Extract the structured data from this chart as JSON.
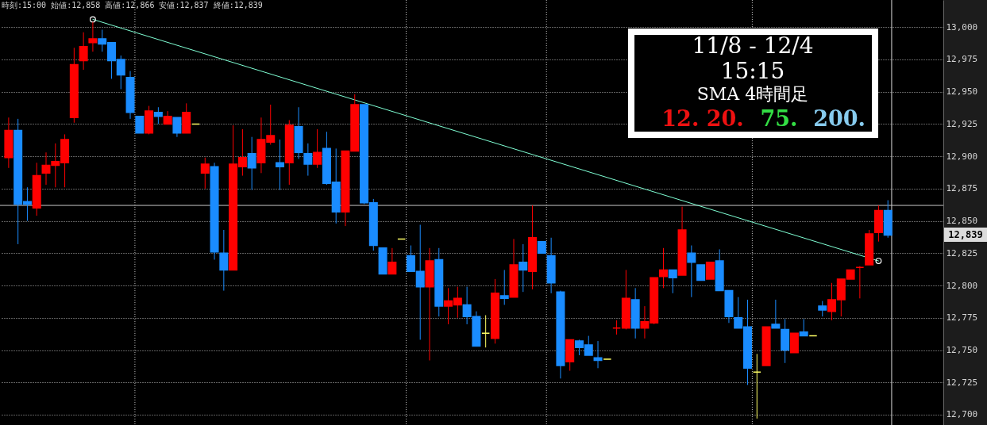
{
  "chart_data": {
    "type": "candlestick",
    "categories": [
      null,
      null,
      null,
      null,
      null,
      null,
      null,
      null,
      null,
      null,
      null,
      null,
      null,
      null,
      null,
      null,
      null,
      null,
      null,
      null,
      null,
      null,
      null,
      null,
      null,
      null,
      null,
      null,
      null,
      null,
      null,
      null,
      null,
      null,
      null,
      null,
      null,
      null,
      null,
      null,
      null,
      null,
      null,
      null,
      null,
      null,
      null,
      null,
      null,
      null,
      null,
      null,
      null,
      null,
      null,
      null,
      null,
      null,
      null,
      null,
      null,
      null,
      null,
      null,
      null,
      null,
      null,
      null,
      null,
      null,
      null,
      null,
      null,
      null,
      null,
      null,
      null,
      null,
      null,
      null,
      null,
      null,
      null,
      null,
      null,
      null,
      null,
      null,
      null,
      null,
      null,
      null,
      null,
      null,
      null,
      null,
      null,
      null,
      null,
      null
    ],
    "ohlc": [
      [
        12899,
        12930,
        12891,
        12920
      ],
      [
        12920,
        12929,
        12832,
        12863
      ],
      [
        12865,
        12876,
        12850,
        12863
      ],
      [
        12860,
        12895,
        12854,
        12885
      ],
      [
        12887,
        12903,
        12878,
        12893
      ],
      [
        12893,
        12910,
        12876,
        12896
      ],
      [
        12895,
        12917,
        12876,
        12913
      ],
      [
        12930,
        12984,
        12926,
        12971
      ],
      [
        12974,
        12996,
        12967,
        12985
      ],
      [
        12988,
        13004,
        12981,
        12991
      ],
      [
        12991,
        12998,
        12981,
        12987
      ],
      [
        12988,
        12988,
        12960,
        12974
      ],
      [
        12975,
        12978,
        12952,
        12963
      ],
      [
        12961,
        12966,
        12929,
        12934
      ],
      [
        12931,
        12931,
        12918,
        12918
      ],
      [
        12918,
        12939,
        12917,
        12935
      ],
      [
        12934,
        12938,
        12925,
        12931
      ],
      [
        12925,
        12935,
        12925,
        12931
      ],
      [
        12930,
        12930,
        12915,
        12918
      ],
      [
        12918,
        12941,
        12918,
        12934
      ],
      [
        12925,
        12925,
        12925,
        12925
      ],
      [
        12887,
        12899,
        12875,
        12894
      ],
      [
        12892,
        12895,
        12820,
        12826
      ],
      [
        12825,
        12843,
        12796,
        12812
      ],
      [
        12812,
        12924,
        12812,
        12894
      ],
      [
        12892,
        12921,
        12885,
        12899
      ],
      [
        12902,
        12915,
        12874,
        12891
      ],
      [
        12895,
        12930,
        12887,
        12913
      ],
      [
        12911,
        12940,
        12909,
        12916
      ],
      [
        12895,
        12913,
        12874,
        12892
      ],
      [
        12895,
        12928,
        12878,
        12924
      ],
      [
        12923,
        12938,
        12898,
        12903
      ],
      [
        12902,
        12910,
        12885,
        12894
      ],
      [
        12894,
        12921,
        12891,
        12903
      ],
      [
        12906,
        12919,
        12878,
        12879
      ],
      [
        12880,
        12906,
        12848,
        12857
      ],
      [
        12857,
        12904,
        12846,
        12904
      ],
      [
        12904,
        12948,
        12904,
        12940
      ],
      [
        12940,
        12940,
        12863,
        12864
      ],
      [
        12864,
        12867,
        12827,
        12831
      ],
      [
        12829,
        12829,
        12809,
        12809
      ],
      [
        12809,
        12829,
        12809,
        12818
      ],
      [
        12836,
        12836,
        12836,
        12836
      ],
      [
        12823,
        12831,
        12811,
        12811
      ],
      [
        12811,
        12847,
        12758,
        12799
      ],
      [
        12799,
        12829,
        12742,
        12819
      ],
      [
        12820,
        12829,
        12776,
        12784
      ],
      [
        12784,
        12798,
        12770,
        12788
      ],
      [
        12785,
        12799,
        12775,
        12790
      ],
      [
        12785,
        12799,
        12770,
        12776
      ],
      [
        12776,
        12780,
        12753,
        12753
      ],
      [
        12763,
        12777,
        12752,
        12763
      ],
      [
        12759,
        12805,
        12755,
        12794
      ],
      [
        12792,
        12812,
        12785,
        12790
      ],
      [
        12791,
        12836,
        12791,
        12816
      ],
      [
        12818,
        12832,
        12795,
        12812
      ],
      [
        12811,
        12862,
        12797,
        12837
      ],
      [
        12834,
        12834,
        12825,
        12825
      ],
      [
        12823,
        12837,
        12794,
        12802
      ],
      [
        12795,
        12796,
        12728,
        12738
      ],
      [
        12741,
        12758,
        12734,
        12758
      ],
      [
        12757,
        12758,
        12746,
        12752
      ],
      [
        12754,
        12761,
        12746,
        12746
      ],
      [
        12744,
        12757,
        12736,
        12742
      ],
      [
        12743,
        12743,
        12743,
        12743
      ],
      [
        12767,
        12773,
        12762,
        12767
      ],
      [
        12767,
        12812,
        12766,
        12790
      ],
      [
        12789,
        12798,
        12759,
        12767
      ],
      [
        12767,
        12784,
        12759,
        12772
      ],
      [
        12771,
        12806,
        12770,
        12806
      ],
      [
        12807,
        12829,
        12798,
        12812
      ],
      [
        12812,
        12812,
        12794,
        12806
      ],
      [
        12808,
        12861,
        12808,
        12843
      ],
      [
        12825,
        12831,
        12791,
        12818
      ],
      [
        12816,
        12816,
        12804,
        12804
      ],
      [
        12805,
        12818,
        12805,
        12818
      ],
      [
        12819,
        12828,
        12796,
        12796
      ],
      [
        12796,
        12796,
        12771,
        12776
      ],
      [
        12775,
        12791,
        12767,
        12767
      ],
      [
        12768,
        12789,
        12723,
        12736
      ],
      [
        12733,
        12747,
        12697,
        12733
      ],
      [
        12738,
        12768,
        12738,
        12768
      ],
      [
        12770,
        12789,
        12767,
        12767
      ],
      [
        12766,
        12774,
        12740,
        12750
      ],
      [
        12748,
        12763,
        12748,
        12763
      ],
      [
        12764,
        12774,
        12761,
        12761
      ],
      [
        12761,
        12761,
        12761,
        12761
      ],
      [
        12784,
        12788,
        12776,
        12781
      ],
      [
        12780,
        12802,
        12773,
        12789
      ],
      [
        12789,
        12805,
        12776,
        12805
      ],
      [
        12805,
        12812,
        12805,
        12812
      ],
      [
        12814,
        12815,
        12790,
        12814
      ],
      [
        12816,
        12843,
        12816,
        12840
      ],
      [
        12841,
        12862,
        12834,
        12858
      ],
      [
        12858,
        12866,
        12837,
        12839
      ],
      null,
      null,
      null,
      null,
      null
    ],
    "colors": [
      "#ff0000",
      "#1a8cff",
      "#1a8cff",
      "#ff0000",
      "#ff0000",
      "#ff0000",
      "#ff0000",
      "#ff0000",
      "#ff0000",
      "#ff0000",
      "#1a8cff",
      "#1a8cff",
      "#1a8cff",
      "#1a8cff",
      "#1a8cff",
      "#ff0000",
      "#1a8cff",
      "#ff0000",
      "#1a8cff",
      "#ff0000",
      "#ffff66",
      "#ff0000",
      "#1a8cff",
      "#1a8cff",
      "#ff0000",
      "#ff0000",
      "#1a8cff",
      "#ff0000",
      "#ff0000",
      "#1a8cff",
      "#ff0000",
      "#1a8cff",
      "#1a8cff",
      "#ff0000",
      "#1a8cff",
      "#1a8cff",
      "#ff0000",
      "#ff0000",
      "#1a8cff",
      "#1a8cff",
      "#1a8cff",
      "#ff0000",
      "#ffff66",
      "#1a8cff",
      "#1a8cff",
      "#ff0000",
      "#1a8cff",
      "#ff0000",
      "#ff0000",
      "#1a8cff",
      "#1a8cff",
      "#ffff66",
      "#ff0000",
      "#1a8cff",
      "#ff0000",
      "#1a8cff",
      "#ff0000",
      "#1a8cff",
      "#1a8cff",
      "#1a8cff",
      "#ff0000",
      "#1a8cff",
      "#1a8cff",
      "#1a8cff",
      "#ffff66",
      "#ff0000",
      "#ff0000",
      "#1a8cff",
      "#ff0000",
      "#ff0000",
      "#ff0000",
      "#1a8cff",
      "#ff0000",
      "#1a8cff",
      "#1a8cff",
      "#ff0000",
      "#1a8cff",
      "#1a8cff",
      "#1a8cff",
      "#1a8cff",
      "#ffff66",
      "#ff0000",
      "#1a8cff",
      "#1a8cff",
      "#ff0000",
      "#1a8cff",
      "#ffff66",
      "#1a8cff",
      "#ff0000",
      "#ff0000",
      "#ff0000",
      "#ff0000",
      "#ff0000",
      "#ff0000",
      "#1a8cff",
      null,
      null,
      null,
      null,
      null
    ],
    "series": [
      {
        "type": "line",
        "color": "#7fffd4",
        "marker": "circle",
        "values": [
          null,
          null,
          null,
          null,
          null,
          null,
          null,
          null,
          null,
          13006,
          null,
          null,
          null,
          null,
          null,
          null,
          null,
          null,
          null,
          null,
          null,
          null,
          null,
          null,
          null,
          null,
          null,
          null,
          null,
          null,
          null,
          null,
          null,
          null,
          null,
          null,
          null,
          null,
          null,
          null,
          null,
          null,
          null,
          null,
          null,
          null,
          null,
          null,
          null,
          null,
          null,
          null,
          null,
          null,
          null,
          null,
          null,
          null,
          null,
          null,
          null,
          null,
          null,
          null,
          null,
          null,
          null,
          null,
          null,
          null,
          null,
          null,
          null,
          null,
          null,
          null,
          null,
          null,
          null,
          null,
          null,
          null,
          null,
          null,
          null,
          null,
          null,
          null,
          null,
          null,
          null,
          null,
          null,
          12819,
          null,
          null,
          null,
          null,
          null,
          null
        ]
      }
    ],
    "ylim": [
      12692,
      13021
    ],
    "yticks": [
      {
        "value": 12700,
        "label": "12,700"
      },
      {
        "value": 12725,
        "label": "12,725"
      },
      {
        "value": 12750,
        "label": "12,750"
      },
      {
        "value": 12775,
        "label": "12,775"
      },
      {
        "value": 12800,
        "label": "12,800"
      },
      {
        "value": 12825,
        "label": "12,825"
      },
      {
        "value": 12850,
        "label": "12,850"
      },
      {
        "value": 12875,
        "label": "12,875"
      },
      {
        "value": 12900,
        "label": "12,900"
      },
      {
        "value": 12925,
        "label": "12,925"
      },
      {
        "value": 12950,
        "label": "12,950"
      },
      {
        "value": 12975,
        "label": "12,975"
      },
      {
        "value": 13000,
        "label": "13,000"
      }
    ],
    "grid": "y",
    "tick_labels": "y",
    "ref_lines": [
      {
        "axis": "y",
        "value": 12862,
        "color": "#c8c8c8"
      }
    ],
    "annotations": [
      "時刻:15:00 始値:12,858 高値:12,866 安値:12,837 終値:12,839",
      "11/8 - 12/4",
      "15:15",
      "SMA 4時間足",
      "12. 20.",
      "75.",
      "200.",
      "12,839"
    ]
  }
}
